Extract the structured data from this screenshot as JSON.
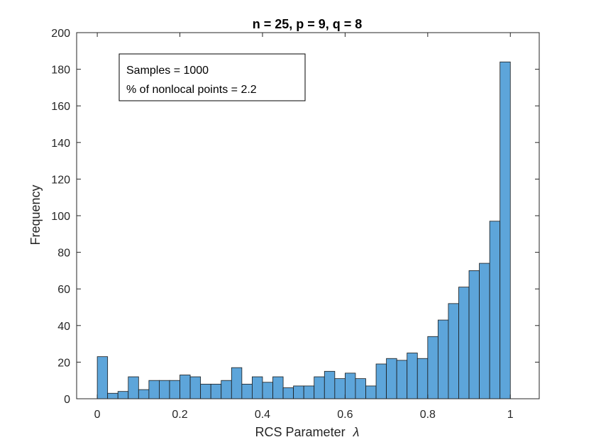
{
  "chart_data": {
    "type": "bar",
    "title": "n = 25, p = 9, q = 8",
    "xlabel": "RCS Parameter",
    "xlabel_symbol": "λ",
    "ylabel": "Frequency",
    "xlim": [
      -0.05,
      1.07
    ],
    "ylim": [
      0,
      200
    ],
    "xticks": [
      0,
      0.2,
      0.4,
      0.6,
      0.8,
      1
    ],
    "xtick_labels": [
      "0",
      "0.2",
      "0.4",
      "0.6",
      "0.8",
      "1"
    ],
    "yticks": [
      0,
      20,
      40,
      60,
      80,
      100,
      120,
      140,
      160,
      180,
      200
    ],
    "ytick_labels": [
      "0",
      "20",
      "40",
      "60",
      "80",
      "100",
      "120",
      "140",
      "160",
      "180",
      "200"
    ],
    "bin_start": 0,
    "bin_width": 0.025,
    "values": [
      23,
      3,
      4,
      12,
      5,
      10,
      10,
      10,
      13,
      12,
      8,
      8,
      10,
      17,
      8,
      12,
      9,
      12,
      6,
      7,
      7,
      12,
      15,
      11,
      14,
      11,
      7,
      19,
      22,
      21,
      25,
      22,
      34,
      43,
      52,
      61,
      70,
      74,
      97,
      184
    ],
    "bar_color": "#5DA5DA",
    "edge_color": "#1a1a1a",
    "grid": false,
    "annotation": {
      "lines": [
        "Samples = 1000",
        "% of nonlocal points = 2.2"
      ],
      "placement": "top-left"
    }
  }
}
